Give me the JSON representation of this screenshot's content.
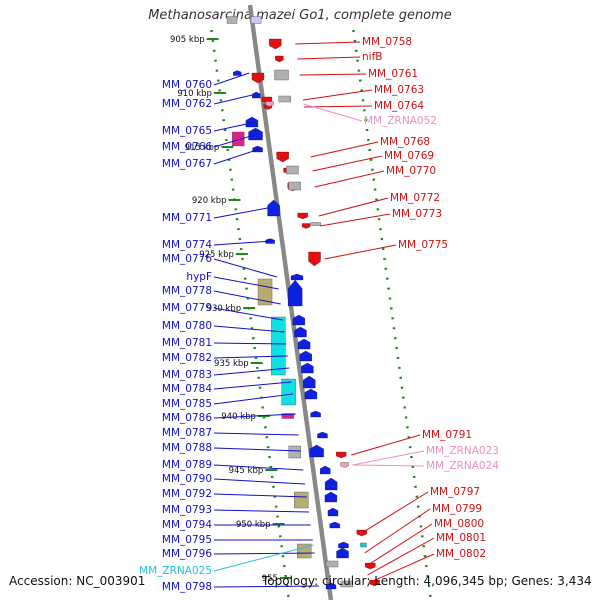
{
  "title": "Methanosarcina mazei Go1, complete genome",
  "footer": {
    "accession": "Accession: NC_003901",
    "summary": "Topology: circular; Length: 4,096,345 bp; Genes: 3,434"
  },
  "colors": {
    "forward_label": "#1010c8",
    "reverse_label": "#d01010",
    "rna_label_pink": "#e890c0",
    "rna_label_cyan": "#20c0e0",
    "backbone": "#888888",
    "tick": "#1a8a1a"
  },
  "scale_labels": [
    "905 kbp",
    "910 kbp",
    "915 kbp",
    "920 kbp",
    "925 kbp",
    "930 kbp",
    "935 kbp",
    "940 kbp",
    "945 kbp",
    "950 kbp",
    "955"
  ],
  "forward_genes": [
    "MM_0760",
    "MM_0762",
    "MM_0765",
    "MM_0766",
    "MM_0767",
    "MM_0771",
    "MM_0774",
    "MM_0776",
    "hypF",
    "MM_0778",
    "MM_0779",
    "MM_0780",
    "MM_0781",
    "MM_0782",
    "MM_0783",
    "MM_0784",
    "MM_0785",
    "MM_0786",
    "MM_0787",
    "MM_0788",
    "MM_0789",
    "MM_0790",
    "MM_0792",
    "MM_0793",
    "MM_0794",
    "MM_0795",
    "MM_0796",
    "MM_ZRNA025",
    "MM_0798"
  ],
  "reverse_genes": [
    "MM_0758",
    "nifB",
    "MM_0761",
    "MM_0763",
    "MM_0764",
    "MM_ZRNA052",
    "MM_0768",
    "MM_0769",
    "MM_0770",
    "MM_0772",
    "MM_0773",
    "MM_0775",
    "MM_0791",
    "MM_ZRNA023",
    "MM_ZRNA024",
    "MM_0797",
    "MM_0799",
    "MM_0800",
    "MM_0801",
    "MM_0802"
  ]
}
